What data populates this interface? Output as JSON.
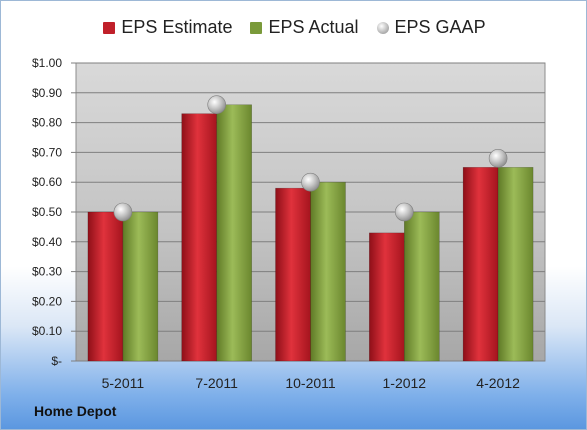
{
  "chart_data": {
    "type": "bar",
    "categories": [
      "5-2011",
      "7-2011",
      "10-2011",
      "1-2012",
      "4-2012"
    ],
    "series": [
      {
        "name": "EPS Estimate",
        "kind": "bar",
        "color": "#c0202a",
        "values": [
          0.5,
          0.83,
          0.58,
          0.43,
          0.65
        ]
      },
      {
        "name": "EPS Actual",
        "kind": "bar",
        "color": "#7a9a3a",
        "values": [
          0.5,
          0.86,
          0.6,
          0.5,
          0.65
        ]
      },
      {
        "name": "EPS GAAP",
        "kind": "marker",
        "color": "#b9b9b9",
        "values": [
          0.5,
          0.86,
          0.6,
          0.5,
          0.68
        ]
      }
    ],
    "ylim": [
      0,
      1.0
    ],
    "yticks": [
      0,
      0.1,
      0.2,
      0.3,
      0.4,
      0.5,
      0.6,
      0.7,
      0.8,
      0.9,
      1.0
    ],
    "ytick_labels": [
      "$-",
      "$0.10",
      "$0.20",
      "$0.30",
      "$0.40",
      "$0.50",
      "$0.60",
      "$0.70",
      "$0.80",
      "$0.90",
      "$1.00"
    ],
    "grid": true,
    "legend_position": "top-center"
  },
  "footer": {
    "company": "Home Depot"
  }
}
